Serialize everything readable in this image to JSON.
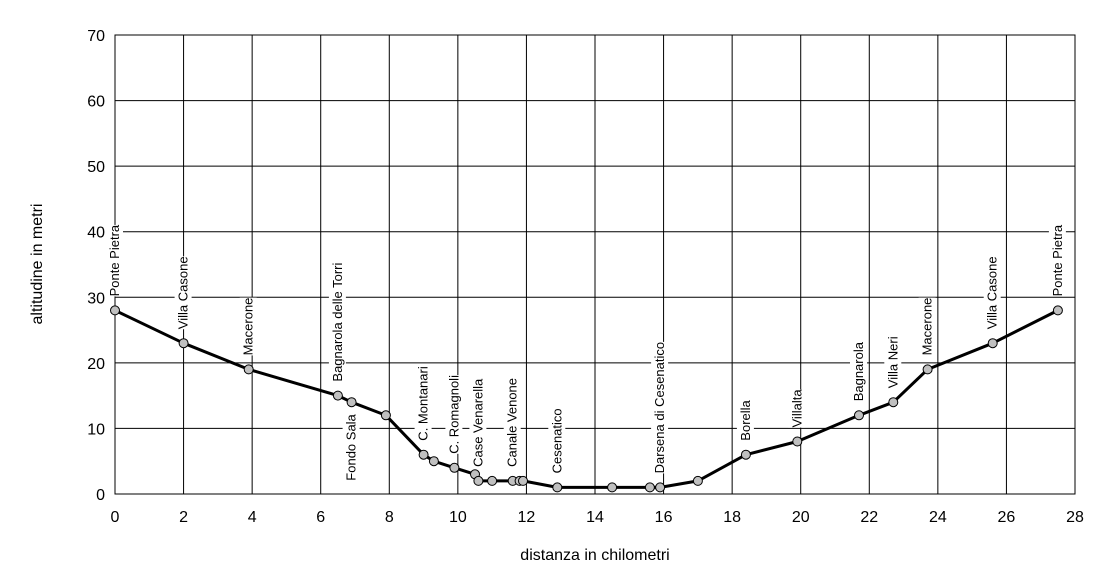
{
  "chart_data": {
    "type": "line",
    "title": "",
    "xlabel": "distanza in chilometri",
    "ylabel": "altitudine  in metri",
    "xlim": [
      0,
      28
    ],
    "ylim": [
      0,
      70
    ],
    "xticks": [
      0,
      2,
      4,
      6,
      8,
      10,
      12,
      14,
      16,
      18,
      20,
      22,
      24,
      26,
      28
    ],
    "yticks": [
      0,
      10,
      20,
      30,
      40,
      50,
      60,
      70
    ],
    "grid": true,
    "legend": "none",
    "line_color": "#000000",
    "marker_color": "#c0c0c0",
    "series": [
      {
        "x": [
          0,
          2.0,
          3.9,
          6.5,
          6.9,
          7.9,
          9.0,
          9.3,
          9.9,
          10.5,
          10.6,
          11.0,
          11.6,
          11.8,
          11.9,
          12.9,
          14.5,
          15.6,
          15.9,
          17.0,
          18.4,
          19.9,
          21.7,
          22.7,
          23.7,
          25.6,
          27.5
        ],
        "y": [
          28,
          23,
          19,
          15,
          14,
          12,
          6,
          5,
          4,
          3,
          2,
          2,
          2,
          2,
          2,
          1,
          1,
          1,
          1,
          2,
          6,
          8,
          12,
          14,
          19,
          23,
          28
        ]
      }
    ],
    "annotations": [
      {
        "text": "Ponte Pietra",
        "x": 0,
        "pos": "above"
      },
      {
        "text": "Villa Casone",
        "x": 2.0,
        "pos": "above"
      },
      {
        "text": "Macerone",
        "x": 3.9,
        "pos": "above"
      },
      {
        "text": "Bagnarola delle Torri",
        "x": 6.5,
        "pos": "above"
      },
      {
        "text": "Fondo Sala",
        "x": 6.9,
        "pos": "below"
      },
      {
        "text": "C. Montanari",
        "x": 9.0,
        "pos": "above"
      },
      {
        "text": "C. Romagnoli",
        "x": 9.9,
        "pos": "above"
      },
      {
        "text": "Case Venarella",
        "x": 10.6,
        "pos": "above"
      },
      {
        "text": "Canale Venone",
        "x": 11.6,
        "pos": "above"
      },
      {
        "text": "Cesenatico",
        "x": 12.9,
        "pos": "above"
      },
      {
        "text": "Darsena di Cesenatico",
        "x": 15.9,
        "pos": "above"
      },
      {
        "text": "Borella",
        "x": 18.4,
        "pos": "above"
      },
      {
        "text": "Villalta",
        "x": 19.9,
        "pos": "above"
      },
      {
        "text": "Bagnarola",
        "x": 21.7,
        "pos": "above"
      },
      {
        "text": "Villa Neri",
        "x": 22.7,
        "pos": "above"
      },
      {
        "text": "Macerone",
        "x": 23.7,
        "pos": "above"
      },
      {
        "text": "Villa Casone",
        "x": 25.6,
        "pos": "above"
      },
      {
        "text": "Ponte Pietra",
        "x": 27.5,
        "pos": "above"
      }
    ]
  }
}
